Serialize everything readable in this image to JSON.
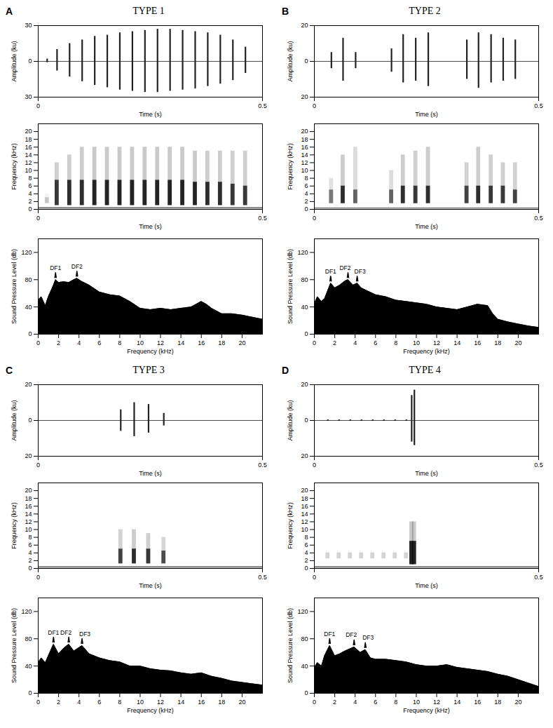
{
  "chart_data": [
    {
      "panel": "A",
      "title": "TYPE 1",
      "charts": [
        {
          "type": "waveform",
          "xlabel": "Time (s)",
          "ylabel": "Amplitude (ku)",
          "xlim": [
            0,
            0.5
          ],
          "xticks": [
            0,
            0.5
          ],
          "ylim": [
            -30,
            30
          ],
          "yticks": [
            30,
            0,
            {
              "value": -30,
              "label": "30"
            }
          ],
          "baseline": 0,
          "color": "#222222",
          "x": [
            0.02,
            0.042,
            0.07,
            0.098,
            0.126,
            0.154,
            0.182,
            0.21,
            0.238,
            0.266,
            0.294,
            0.322,
            0.35,
            0.378,
            0.406,
            0.434,
            0.462
          ],
          "y_max": [
            2,
            10,
            15,
            18,
            21,
            22,
            24,
            25,
            26,
            27,
            27,
            26,
            25,
            24,
            22,
            18,
            12
          ],
          "y_min": [
            -1,
            -8,
            -13,
            -17,
            -20,
            -22,
            -24,
            -25,
            -26,
            -26,
            -25,
            -24,
            -23,
            -21,
            -19,
            -16,
            -10
          ]
        },
        {
          "type": "spectrogram",
          "xlabel": "Time (s)",
          "ylabel": "Frequency (kHz)",
          "xlim": [
            0,
            0.5
          ],
          "xticks": [
            0,
            0.5
          ],
          "ylim": [
            0,
            22
          ],
          "yticks": [
            0,
            2,
            4,
            6,
            8,
            10,
            12,
            14,
            16,
            18,
            20
          ],
          "color": "#111111",
          "noise": [
            0.1,
            0.5
          ],
          "x": [
            0.02,
            0.042,
            0.07,
            0.098,
            0.126,
            0.154,
            0.182,
            0.21,
            0.238,
            0.266,
            0.294,
            0.322,
            0.35,
            0.378,
            0.406,
            0.434,
            0.462
          ],
          "low": [
            1.5,
            1,
            1,
            1,
            1,
            1,
            1,
            1,
            1,
            1,
            1,
            1,
            1,
            1,
            1,
            1,
            1
          ],
          "high": [
            3,
            7.5,
            7.5,
            7.5,
            7.5,
            7.5,
            7.5,
            7.5,
            7.5,
            7.5,
            7.5,
            7.5,
            7,
            7,
            7,
            6.5,
            6
          ],
          "top": [
            4,
            12,
            14,
            16,
            16,
            16,
            16,
            16,
            16,
            16,
            16,
            16,
            15,
            15,
            15,
            15,
            15
          ],
          "level": [
            0.2,
            0.8,
            0.85,
            0.85,
            0.9,
            0.9,
            0.9,
            0.9,
            0.9,
            0.9,
            0.9,
            0.9,
            0.9,
            0.85,
            0.85,
            0.8,
            0.8
          ]
        },
        {
          "type": "area",
          "xlabel": "Frequency (kHz)",
          "ylabel": "Sound Pressure Level (db)",
          "xlim": [
            0,
            22
          ],
          "xticks": [
            0,
            2,
            4,
            6,
            8,
            10,
            12,
            14,
            16,
            18,
            20
          ],
          "ylim": [
            0,
            140
          ],
          "yticks": [
            0,
            40,
            80,
            120
          ],
          "color": "#000000",
          "x": [
            0,
            0.3,
            0.7,
            1,
            1.5,
            1.7,
            2,
            2.5,
            3,
            3.5,
            3.8,
            4.2,
            5,
            6,
            7,
            8,
            9,
            10,
            11,
            12,
            13,
            14,
            15,
            16,
            16.5,
            17,
            18,
            19,
            20,
            21,
            22
          ],
          "values": [
            50,
            55,
            42,
            55,
            72,
            80,
            76,
            77,
            76,
            80,
            82,
            78,
            72,
            62,
            58,
            56,
            48,
            38,
            36,
            38,
            36,
            38,
            40,
            48,
            44,
            38,
            30,
            30,
            28,
            25,
            22
          ],
          "annotations": [
            {
              "text": "DF1",
              "x": 1.7,
              "y": 80
            },
            {
              "text": "DF2",
              "x": 3.8,
              "y": 82
            }
          ]
        }
      ]
    },
    {
      "panel": "B",
      "title": "TYPE 2",
      "charts": [
        {
          "type": "waveform",
          "xlabel": "Time (s)",
          "ylabel": "Amplitude (ku)",
          "xlim": [
            0,
            0.5
          ],
          "xticks": [
            0,
            0.5
          ],
          "ylim": [
            -20,
            20
          ],
          "yticks": [
            20,
            0,
            {
              "value": -20,
              "label": "20"
            }
          ],
          "baseline": 0,
          "color": "#222222",
          "x": [
            0.038,
            0.064,
            0.092,
            0.172,
            0.198,
            0.226,
            0.254,
            0.34,
            0.366,
            0.394,
            0.421,
            0.448
          ],
          "y_max": [
            5,
            13,
            5,
            7,
            15,
            13,
            16,
            12,
            16,
            15,
            13,
            12
          ],
          "y_min": [
            -4,
            -11,
            -4,
            -6,
            -12,
            -11,
            -14,
            -10,
            -15,
            -12,
            -11,
            -10
          ]
        },
        {
          "type": "spectrogram",
          "xlabel": "Time (s)",
          "ylabel": "Frequency (kHz)",
          "xlim": [
            0,
            0.5
          ],
          "xticks": [
            0,
            0.5
          ],
          "ylim": [
            0,
            22
          ],
          "yticks": [
            0,
            2,
            4,
            6,
            8,
            10,
            12,
            14,
            16,
            18,
            20
          ],
          "color": "#111111",
          "noise": [
            0.1,
            0.4
          ],
          "x": [
            0.038,
            0.064,
            0.092,
            0.172,
            0.198,
            0.226,
            0.254,
            0.34,
            0.366,
            0.394,
            0.421,
            0.448
          ],
          "low": [
            1.5,
            1.5,
            1.5,
            1.5,
            1.5,
            1.5,
            1.5,
            1.5,
            1.5,
            1.5,
            1.5,
            1.5
          ],
          "high": [
            5,
            6,
            5,
            5,
            6,
            6,
            6,
            6,
            6,
            6,
            6,
            5
          ],
          "top": [
            8,
            14,
            16,
            10,
            14,
            15,
            16,
            12,
            16,
            14,
            12,
            12
          ],
          "level": [
            0.5,
            0.85,
            0.6,
            0.6,
            0.85,
            0.8,
            0.85,
            0.75,
            0.85,
            0.8,
            0.8,
            0.75
          ]
        },
        {
          "type": "area",
          "xlabel": "Frequency (kHz)",
          "ylabel": "Sound Pressure Level (db)",
          "xlim": [
            0,
            22
          ],
          "xticks": [
            0,
            2,
            4,
            6,
            8,
            10,
            12,
            14,
            16,
            18,
            20
          ],
          "ylim": [
            0,
            140
          ],
          "yticks": [
            0,
            40,
            80,
            120
          ],
          "color": "#000000",
          "x": [
            0,
            0.3,
            0.7,
            1,
            1.6,
            2,
            2.5,
            3,
            3.3,
            3.8,
            4.2,
            4.6,
            5,
            6,
            7,
            8,
            9,
            10,
            11,
            12,
            13,
            14,
            15,
            16,
            17,
            17.5,
            18,
            19,
            20,
            21,
            22
          ],
          "values": [
            45,
            55,
            48,
            52,
            75,
            68,
            72,
            78,
            80,
            72,
            75,
            68,
            65,
            58,
            55,
            50,
            48,
            46,
            44,
            40,
            38,
            36,
            40,
            44,
            42,
            30,
            22,
            18,
            15,
            12,
            10
          ],
          "annotations": [
            {
              "text": "DF1",
              "x": 1.6,
              "y": 75
            },
            {
              "text": "DF2",
              "x": 3.3,
              "y": 80
            },
            {
              "text": "DF3",
              "x": 4.2,
              "y": 75
            }
          ]
        }
      ]
    },
    {
      "panel": "C",
      "title": "TYPE 3",
      "charts": [
        {
          "type": "waveform",
          "xlabel": "Time (s)",
          "ylabel": "Amplitude (ku)",
          "xlim": [
            0,
            0.5
          ],
          "xticks": [
            0,
            0.5
          ],
          "ylim": [
            -20,
            20
          ],
          "yticks": [
            20,
            0,
            {
              "value": -20,
              "label": "20"
            }
          ],
          "baseline": 0,
          "color": "#222222",
          "x": [
            0.184,
            0.214,
            0.246,
            0.28
          ],
          "y_max": [
            6,
            10,
            9,
            4
          ],
          "y_min": [
            -6,
            -9,
            -7,
            -3
          ]
        },
        {
          "type": "spectrogram",
          "xlabel": "Time (s)",
          "ylabel": "Frequency (kHz)",
          "xlim": [
            0,
            0.5
          ],
          "xticks": [
            0,
            0.5
          ],
          "ylim": [
            0,
            22
          ],
          "yticks": [
            0,
            2,
            4,
            6,
            8,
            10,
            12,
            14,
            16,
            18,
            20
          ],
          "color": "#111111",
          "noise": [
            0.1,
            0.5
          ],
          "x": [
            0.184,
            0.214,
            0.246,
            0.28
          ],
          "low": [
            1.2,
            1.2,
            1.2,
            1.2
          ],
          "high": [
            5,
            5,
            5,
            4.5
          ],
          "top": [
            10,
            10,
            9,
            8
          ],
          "level": [
            0.75,
            0.85,
            0.8,
            0.7
          ]
        },
        {
          "type": "area",
          "xlabel": "Frequency (kHz)",
          "ylabel": "Sound Pressure Level (db)",
          "xlim": [
            0,
            22
          ],
          "xticks": [
            0,
            2,
            4,
            6,
            8,
            10,
            12,
            14,
            16,
            18,
            20
          ],
          "ylim": [
            0,
            140
          ],
          "yticks": [
            0,
            40,
            80,
            120
          ],
          "color": "#000000",
          "x": [
            0,
            0.3,
            0.7,
            1,
            1.5,
            2,
            2.5,
            3,
            3.5,
            4.3,
            5,
            6,
            7,
            8,
            9,
            10,
            11,
            12,
            13,
            14,
            15,
            16,
            17,
            18,
            19,
            20,
            21,
            22
          ],
          "values": [
            45,
            52,
            45,
            55,
            72,
            58,
            66,
            72,
            62,
            70,
            58,
            52,
            48,
            46,
            40,
            40,
            36,
            34,
            33,
            30,
            28,
            30,
            25,
            22,
            18,
            16,
            14,
            12
          ],
          "annotations": [
            {
              "text": "DF1",
              "x": 1.5,
              "y": 72
            },
            {
              "text": "DF2",
              "x": 3,
              "y": 72
            },
            {
              "text": "DF3",
              "x": 4.3,
              "y": 70
            }
          ]
        }
      ]
    },
    {
      "panel": "D",
      "title": "TYPE 4",
      "charts": [
        {
          "type": "waveform",
          "xlabel": "Time (s)",
          "ylabel": "Amplitude (ku)",
          "xlim": [
            0,
            0.5
          ],
          "xticks": [
            0,
            0.5
          ],
          "ylim": [
            -20,
            20
          ],
          "yticks": [
            20,
            0,
            {
              "value": -20,
              "label": "20"
            }
          ],
          "baseline": 0,
          "color": "#222222",
          "x": [
            0.03,
            0.055,
            0.08,
            0.105,
            0.13,
            0.155,
            0.18,
            0.205,
            0.217,
            0.223
          ],
          "y_max": [
            0.4,
            0.4,
            0.4,
            0.4,
            0.4,
            0.4,
            0.4,
            0.4,
            14,
            17
          ],
          "y_min": [
            -0.4,
            -0.4,
            -0.4,
            -0.4,
            -0.4,
            -0.4,
            -0.4,
            -0.4,
            -12,
            -14
          ]
        },
        {
          "type": "spectrogram",
          "xlabel": "Time (s)",
          "ylabel": "Frequency (kHz)",
          "xlim": [
            0,
            0.5
          ],
          "xticks": [
            0,
            0.5
          ],
          "ylim": [
            0,
            22
          ],
          "yticks": [
            0,
            2,
            4,
            6,
            8,
            10,
            12,
            14,
            16,
            18,
            20
          ],
          "color": "#111111",
          "noise": [
            0.1,
            0.5
          ],
          "x": [
            0.03,
            0.055,
            0.08,
            0.105,
            0.13,
            0.155,
            0.18,
            0.205,
            0.217,
            0.223
          ],
          "low": [
            2.5,
            2.5,
            2.5,
            2.5,
            2.5,
            2.5,
            2.5,
            2.5,
            1,
            1
          ],
          "high": [
            4,
            4,
            4,
            4,
            4,
            4,
            4,
            4,
            7,
            7
          ],
          "top": [
            4.5,
            4.5,
            4.5,
            4.5,
            4.5,
            4.5,
            4.5,
            4.5,
            12,
            12
          ],
          "level": [
            0.15,
            0.15,
            0.15,
            0.15,
            0.15,
            0.15,
            0.15,
            0.15,
            0.9,
            0.9
          ]
        },
        {
          "type": "area",
          "xlabel": "Frequency (kHz)",
          "ylabel": "Sound Pressure Level (db)",
          "xlim": [
            0,
            22
          ],
          "xticks": [
            0,
            2,
            4,
            6,
            8,
            10,
            12,
            14,
            16,
            18,
            20
          ],
          "ylim": [
            0,
            140
          ],
          "yticks": [
            0,
            40,
            80,
            120
          ],
          "color": "#000000",
          "x": [
            0,
            0.3,
            0.7,
            1,
            1.5,
            2,
            2.5,
            3,
            3.9,
            4.5,
            5,
            5.5,
            6,
            7,
            8,
            9,
            10,
            11,
            12,
            13,
            14,
            15,
            16,
            17,
            18,
            19,
            20,
            21,
            22
          ],
          "values": [
            38,
            45,
            40,
            55,
            70,
            55,
            58,
            62,
            68,
            60,
            64,
            52,
            50,
            50,
            48,
            46,
            42,
            40,
            40,
            42,
            38,
            36,
            34,
            32,
            28,
            25,
            20,
            15,
            10
          ],
          "annotations": [
            {
              "text": "DF1",
              "x": 1.5,
              "y": 70
            },
            {
              "text": "DF2",
              "x": 3.9,
              "y": 68
            },
            {
              "text": "DF3",
              "x": 5,
              "y": 64
            }
          ]
        }
      ]
    }
  ]
}
